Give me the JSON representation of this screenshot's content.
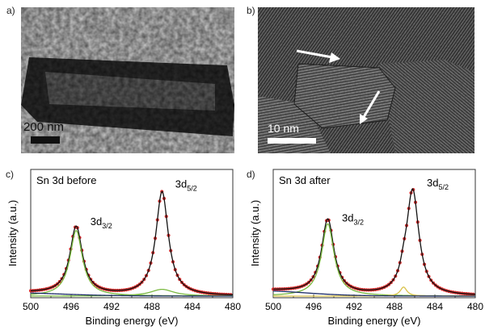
{
  "figure": {
    "panels": {
      "a": {
        "label": "a)",
        "scale_bar": "200 nm"
      },
      "b": {
        "label": "b)",
        "scale_bar": "10 nm"
      }
    }
  },
  "chart_data": [
    {
      "panel_label": "c)",
      "type": "line",
      "title": "Sn 3d before",
      "xlabel": "Binding energy (eV)",
      "ylabel": "Intensity (a.u.)",
      "xlim": [
        500,
        480
      ],
      "xticks": [
        500,
        496,
        492,
        488,
        484,
        480
      ],
      "ylim": [
        0,
        1.05
      ],
      "annotations": [
        {
          "main": "3d",
          "sub": "3/2",
          "x": 494.1,
          "y": 0.63
        },
        {
          "main": "3d",
          "sub": "5/2",
          "x": 485.7,
          "y": 0.96
        }
      ],
      "series": [
        {
          "name": "data",
          "kind": "points",
          "color": "#d93030",
          "peaks": [
            {
              "c": 495.5,
              "a": 0.6,
              "w": 0.75
            },
            {
              "c": 487.0,
              "a": 0.92,
              "w": 0.75
            }
          ],
          "background": [
            {
              "c": 497.5,
              "a": 0.04,
              "w": 3.0
            }
          ]
        },
        {
          "name": "fit",
          "kind": "line",
          "color": "#111111",
          "peaks": [
            {
              "c": 495.5,
              "a": 0.6,
              "w": 0.75
            },
            {
              "c": 487.0,
              "a": 0.92,
              "w": 0.75
            }
          ],
          "background": [
            {
              "c": 497.5,
              "a": 0.04,
              "w": 3.0
            }
          ]
        },
        {
          "name": "Sn 3d3/2 component",
          "kind": "line",
          "color": "#7ab940",
          "peaks": [
            {
              "c": 495.5,
              "a": 0.58,
              "w": 0.75
            }
          ],
          "background": []
        },
        {
          "name": "Sn 3d5/2 component",
          "kind": "line",
          "color": "#7ab940",
          "peaks": [
            {
              "c": 487.0,
              "a": 0.06,
              "w": 1.4
            }
          ],
          "background": []
        },
        {
          "name": "background",
          "kind": "line",
          "color": "#1a2a66",
          "peaks": [],
          "background": [
            {
              "c": 497.5,
              "a": 0.04,
              "w": 3.0
            }
          ]
        }
      ]
    },
    {
      "panel_label": "d)",
      "type": "line",
      "title": "Sn 3d after",
      "xlabel": "Binding energy (eV)",
      "ylabel": "Intensity (a.u.)",
      "xlim": [
        500,
        480
      ],
      "xticks": [
        500,
        496,
        492,
        488,
        484,
        480
      ],
      "ylim": [
        0,
        1.05
      ],
      "annotations": [
        {
          "main": "3d",
          "sub": "3/2",
          "x": 493.2,
          "y": 0.66
        },
        {
          "main": "3d",
          "sub": "5/2",
          "x": 484.8,
          "y": 0.97
        }
      ],
      "series": [
        {
          "name": "data",
          "kind": "points",
          "color": "#d93030",
          "peaks": [
            {
              "c": 494.6,
              "a": 0.66,
              "w": 0.75
            },
            {
              "c": 486.2,
              "a": 0.93,
              "w": 0.75
            },
            {
              "c": 487.1,
              "a": 0.08,
              "w": 0.4
            }
          ],
          "background": [
            {
              "c": 497.0,
              "a": 0.06,
              "w": 2.5
            }
          ]
        },
        {
          "name": "fit",
          "kind": "line",
          "color": "#111111",
          "peaks": [
            {
              "c": 494.6,
              "a": 0.66,
              "w": 0.75
            },
            {
              "c": 486.2,
              "a": 0.93,
              "w": 0.75
            },
            {
              "c": 487.1,
              "a": 0.08,
              "w": 0.4
            }
          ],
          "background": [
            {
              "c": 497.0,
              "a": 0.06,
              "w": 2.5
            }
          ]
        },
        {
          "name": "Sn 3d3/2 component",
          "kind": "line",
          "color": "#7ab940",
          "peaks": [
            {
              "c": 494.6,
              "a": 0.64,
              "w": 0.75
            }
          ],
          "background": []
        },
        {
          "name": "Sn 3d5/2 component",
          "kind": "line",
          "color": "#d9c24a",
          "peaks": [
            {
              "c": 487.1,
              "a": 0.08,
              "w": 0.4
            }
          ],
          "background": []
        },
        {
          "name": "background",
          "kind": "line",
          "color": "#1a2a66",
          "peaks": [],
          "background": [
            {
              "c": 497.0,
              "a": 0.06,
              "w": 2.5
            }
          ]
        }
      ]
    }
  ]
}
